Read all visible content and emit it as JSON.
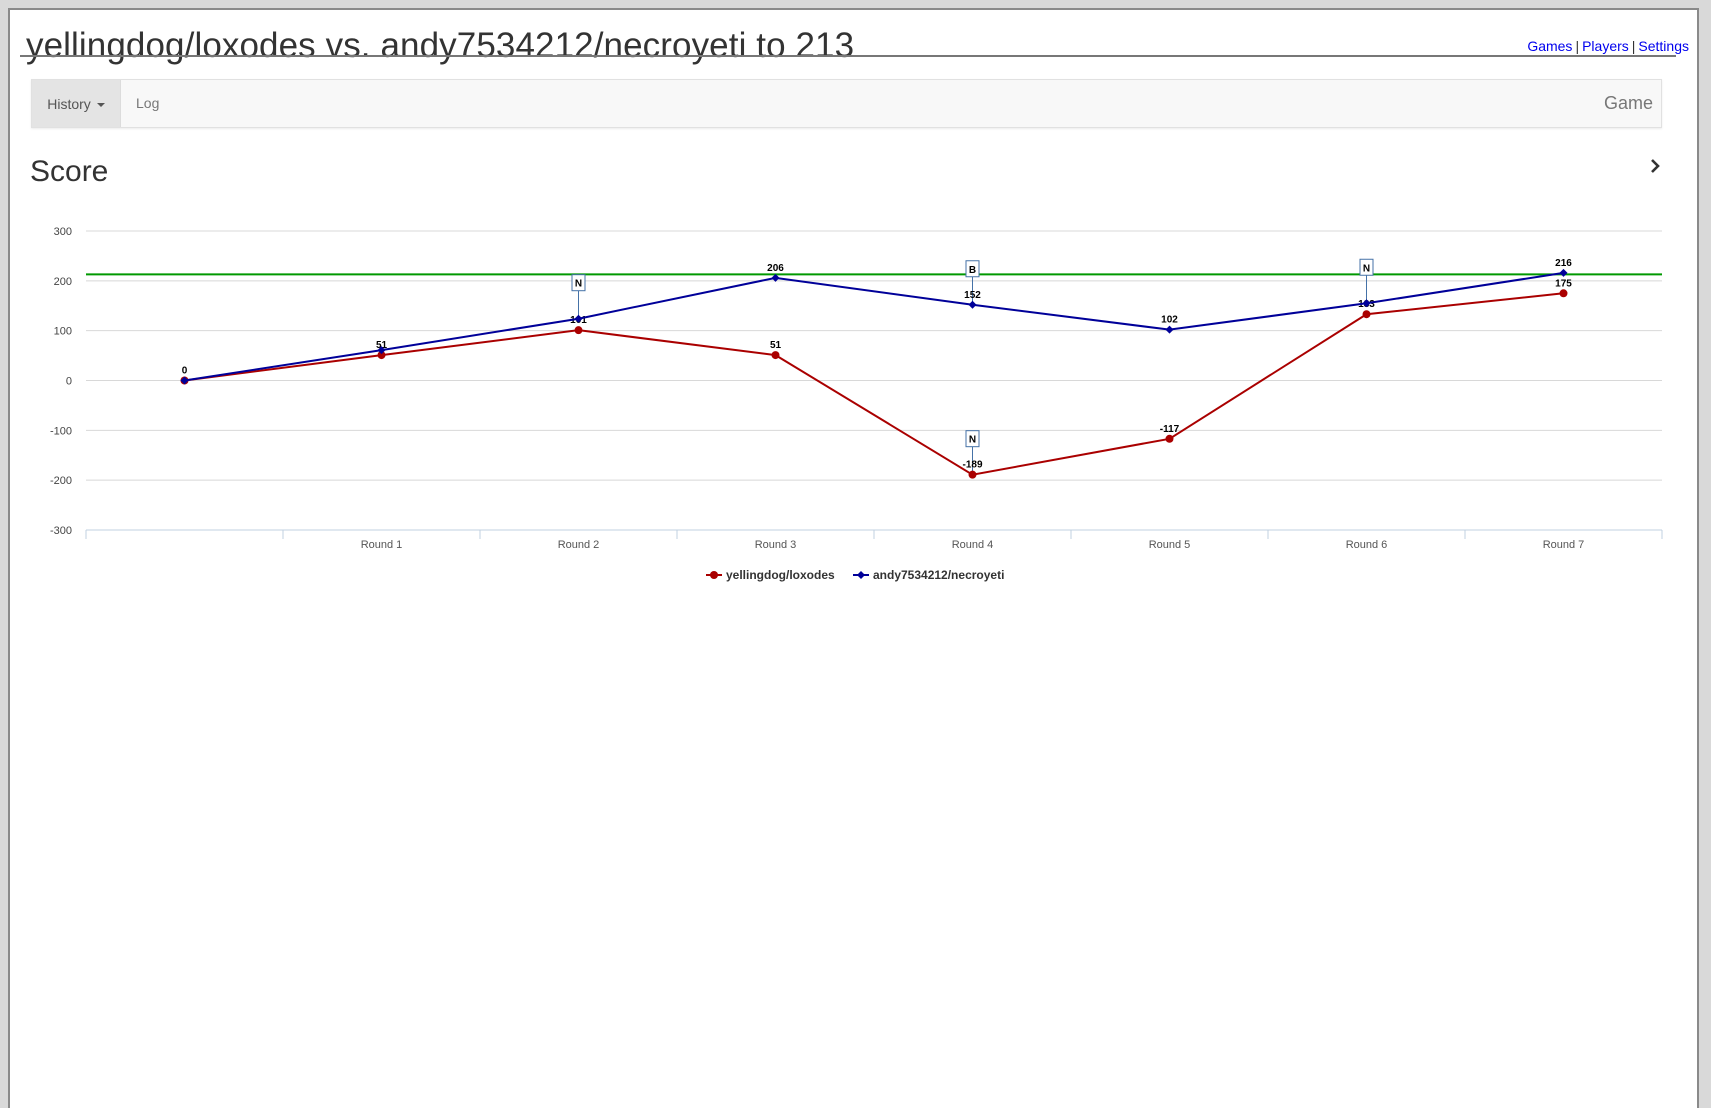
{
  "page": {
    "title": "yellingdog/loxodes vs. andy7534212/necroyeti to 213",
    "links": [
      "Games",
      "Players",
      "Settings"
    ],
    "separator": "|"
  },
  "navbar": {
    "history_label": "History",
    "log_label": "Log",
    "game_label": "Game"
  },
  "section": {
    "title": "Score",
    "chevron_icon": "chevron-right-icon"
  },
  "chart_data": {
    "type": "line",
    "categories": [
      "",
      "Round 1",
      "Round 2",
      "Round 3",
      "Round 4",
      "Round 5",
      "Round 6",
      "Round 7"
    ],
    "ylim": [
      -300,
      300
    ],
    "yticks": [
      300,
      200,
      100,
      0,
      -100,
      -200,
      -300
    ],
    "grid": true,
    "legend_position": "bottom-center",
    "target_line": {
      "value": 213,
      "color": "#009900"
    },
    "series": [
      {
        "name": "yellingdog/loxodes",
        "color": "#aa0000",
        "marker": "circle",
        "values": [
          0,
          51,
          101,
          51,
          -189,
          -117,
          133,
          175
        ],
        "labels": [
          "0",
          "51",
          "101",
          "51",
          "-189",
          "-117",
          "133",
          "175"
        ]
      },
      {
        "name": "andy7534212/necroyeti",
        "color": "#000099",
        "marker": "diamond",
        "values": [
          0,
          61,
          124,
          206,
          152,
          102,
          155,
          216
        ],
        "labels": [
          "",
          "",
          "",
          "206",
          "152",
          "102",
          "",
          "216"
        ]
      }
    ],
    "flags": [
      {
        "text": "N",
        "series": 1,
        "index": 2
      },
      {
        "text": "B",
        "series": 1,
        "index": 4
      },
      {
        "text": "N",
        "series": 0,
        "index": 4
      },
      {
        "text": "N",
        "series": 1,
        "index": 6
      }
    ]
  }
}
